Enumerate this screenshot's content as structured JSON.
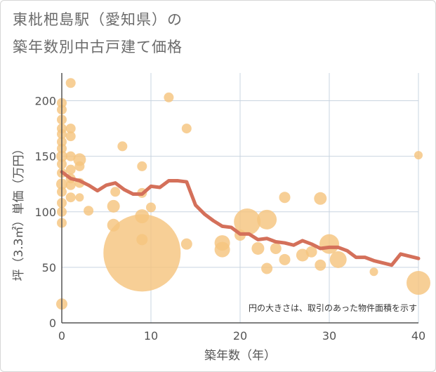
{
  "title_line1": "東枇杷島駅（愛知県）の",
  "title_line2": "築年数別中古戸建て価格",
  "note": "円の大きさは、取引のあった物件面積を示す",
  "colors": {
    "bubble": "#f5c57f",
    "line": "#d4705a",
    "grid": "#c9d4e0",
    "axis": "#555555"
  },
  "chart_data": {
    "type": "scatter",
    "xlabel": "築年数（年）",
    "ylabel": "坪（3.3㎡）単価（万円）",
    "xlim": [
      0,
      40
    ],
    "ylim": [
      0,
      225
    ],
    "xticks": [
      0,
      10,
      20,
      30,
      40
    ],
    "yticks": [
      0,
      50,
      100,
      150,
      200
    ],
    "bubbles": [
      {
        "x": 0,
        "y": 17,
        "s": 8
      },
      {
        "x": 0,
        "y": 90,
        "s": 7
      },
      {
        "x": 0,
        "y": 100,
        "s": 7
      },
      {
        "x": 0,
        "y": 108,
        "s": 7
      },
      {
        "x": 0,
        "y": 118,
        "s": 7
      },
      {
        "x": 0,
        "y": 125,
        "s": 8
      },
      {
        "x": 0,
        "y": 135,
        "s": 7
      },
      {
        "x": 0,
        "y": 143,
        "s": 7
      },
      {
        "x": 0,
        "y": 150,
        "s": 8
      },
      {
        "x": 0,
        "y": 157,
        "s": 7
      },
      {
        "x": 0,
        "y": 163,
        "s": 7
      },
      {
        "x": 0,
        "y": 170,
        "s": 7
      },
      {
        "x": 0,
        "y": 175,
        "s": 7
      },
      {
        "x": 0,
        "y": 183,
        "s": 7
      },
      {
        "x": 0,
        "y": 192,
        "s": 7
      },
      {
        "x": 0,
        "y": 198,
        "s": 7
      },
      {
        "x": 1,
        "y": 216,
        "s": 7
      },
      {
        "x": 1,
        "y": 175,
        "s": 7
      },
      {
        "x": 1,
        "y": 168,
        "s": 7
      },
      {
        "x": 1,
        "y": 150,
        "s": 7
      },
      {
        "x": 1,
        "y": 138,
        "s": 7
      },
      {
        "x": 1,
        "y": 130,
        "s": 7
      },
      {
        "x": 1,
        "y": 124,
        "s": 7
      },
      {
        "x": 1,
        "y": 113,
        "s": 7
      },
      {
        "x": 2,
        "y": 147,
        "s": 9
      },
      {
        "x": 2,
        "y": 141,
        "s": 7
      },
      {
        "x": 2,
        "y": 126,
        "s": 7
      },
      {
        "x": 2,
        "y": 113,
        "s": 6
      },
      {
        "x": 3,
        "y": 101,
        "s": 7
      },
      {
        "x": 5.8,
        "y": 105,
        "s": 9
      },
      {
        "x": 5.8,
        "y": 88,
        "s": 9
      },
      {
        "x": 6,
        "y": 118,
        "s": 7
      },
      {
        "x": 6.8,
        "y": 159,
        "s": 7
      },
      {
        "x": 9,
        "y": 141,
        "s": 7
      },
      {
        "x": 9,
        "y": 117,
        "s": 7
      },
      {
        "x": 9,
        "y": 96,
        "s": 10
      },
      {
        "x": 9,
        "y": 75,
        "s": 8
      },
      {
        "x": 9,
        "y": 63,
        "s": 55
      },
      {
        "x": 10,
        "y": 104,
        "s": 7
      },
      {
        "x": 12,
        "y": 203,
        "s": 7
      },
      {
        "x": 14,
        "y": 175,
        "s": 7
      },
      {
        "x": 14,
        "y": 71,
        "s": 8
      },
      {
        "x": 18,
        "y": 72,
        "s": 11
      },
      {
        "x": 18,
        "y": 66,
        "s": 11
      },
      {
        "x": 20,
        "y": 79,
        "s": 8
      },
      {
        "x": 20.8,
        "y": 91,
        "s": 19
      },
      {
        "x": 22,
        "y": 67,
        "s": 9
      },
      {
        "x": 23,
        "y": 93,
        "s": 14
      },
      {
        "x": 23,
        "y": 49,
        "s": 8
      },
      {
        "x": 24,
        "y": 67,
        "s": 8
      },
      {
        "x": 25,
        "y": 113,
        "s": 8
      },
      {
        "x": 25,
        "y": 57,
        "s": 8
      },
      {
        "x": 27,
        "y": 61,
        "s": 9
      },
      {
        "x": 28,
        "y": 64,
        "s": 8
      },
      {
        "x": 29,
        "y": 112,
        "s": 9
      },
      {
        "x": 29,
        "y": 52,
        "s": 8
      },
      {
        "x": 30,
        "y": 71,
        "s": 14
      },
      {
        "x": 31,
        "y": 57,
        "s": 12
      },
      {
        "x": 35,
        "y": 46,
        "s": 6
      },
      {
        "x": 40,
        "y": 151,
        "s": 6
      },
      {
        "x": 40,
        "y": 36,
        "s": 17
      }
    ],
    "line": {
      "x": [
        0,
        1,
        2,
        3,
        4,
        5,
        6,
        7,
        8,
        9,
        10,
        11,
        12,
        13,
        14,
        15,
        16,
        17,
        18,
        19,
        20,
        21,
        22,
        23,
        24,
        25,
        26,
        27,
        28,
        29,
        30,
        31,
        32,
        33,
        34,
        35,
        36,
        37,
        38,
        39,
        40
      ],
      "y": [
        136,
        130,
        128,
        124,
        119,
        124,
        126,
        120,
        116,
        116,
        123,
        122,
        128,
        128,
        127,
        106,
        98,
        92,
        87,
        86,
        80,
        80,
        75,
        76,
        73,
        72,
        70,
        74,
        71,
        67,
        68,
        68,
        65,
        59,
        59,
        56,
        54,
        52,
        62,
        60,
        58
      ]
    }
  }
}
